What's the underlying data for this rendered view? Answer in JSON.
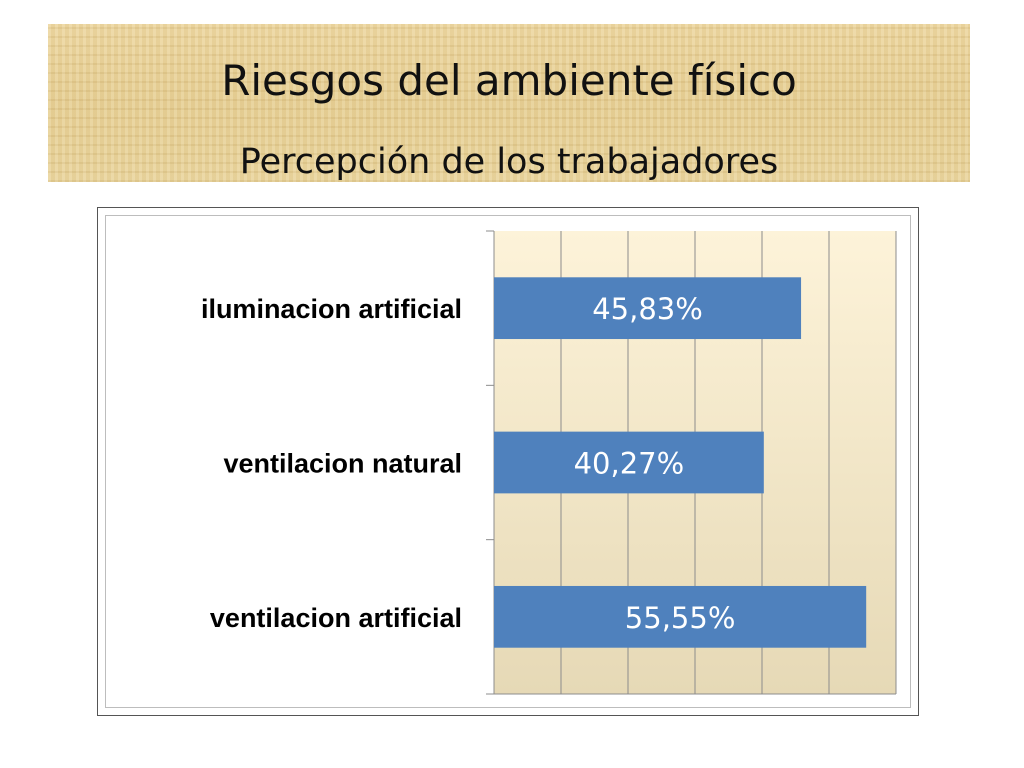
{
  "slide": {
    "title": "Riesgos del ambiente físico",
    "subtitle": "Percepción de los trabajadores"
  },
  "colors": {
    "title_band": "#e8d196",
    "bar": "#4f81bd",
    "bar_label": "#ffffff",
    "plot_bg_top": "#fdf3d9",
    "plot_bg_bottom": "#e6d9b6",
    "gridline": "#8c8c8c",
    "category_label": "#000000"
  },
  "chart_data": {
    "type": "bar",
    "orientation": "horizontal",
    "categories": [
      "iluminacion artificial",
      "ventilacion natural",
      "ventilacion artificial"
    ],
    "values": [
      45.83,
      40.27,
      55.55
    ],
    "data_labels": [
      "45,83%",
      "40,27%",
      "55,55%"
    ],
    "xlim": [
      0,
      60
    ],
    "x_gridline_step": 10,
    "x_tick_labels_visible": false,
    "grid": true,
    "legend": "none",
    "title": "",
    "xlabel": "",
    "ylabel": ""
  }
}
